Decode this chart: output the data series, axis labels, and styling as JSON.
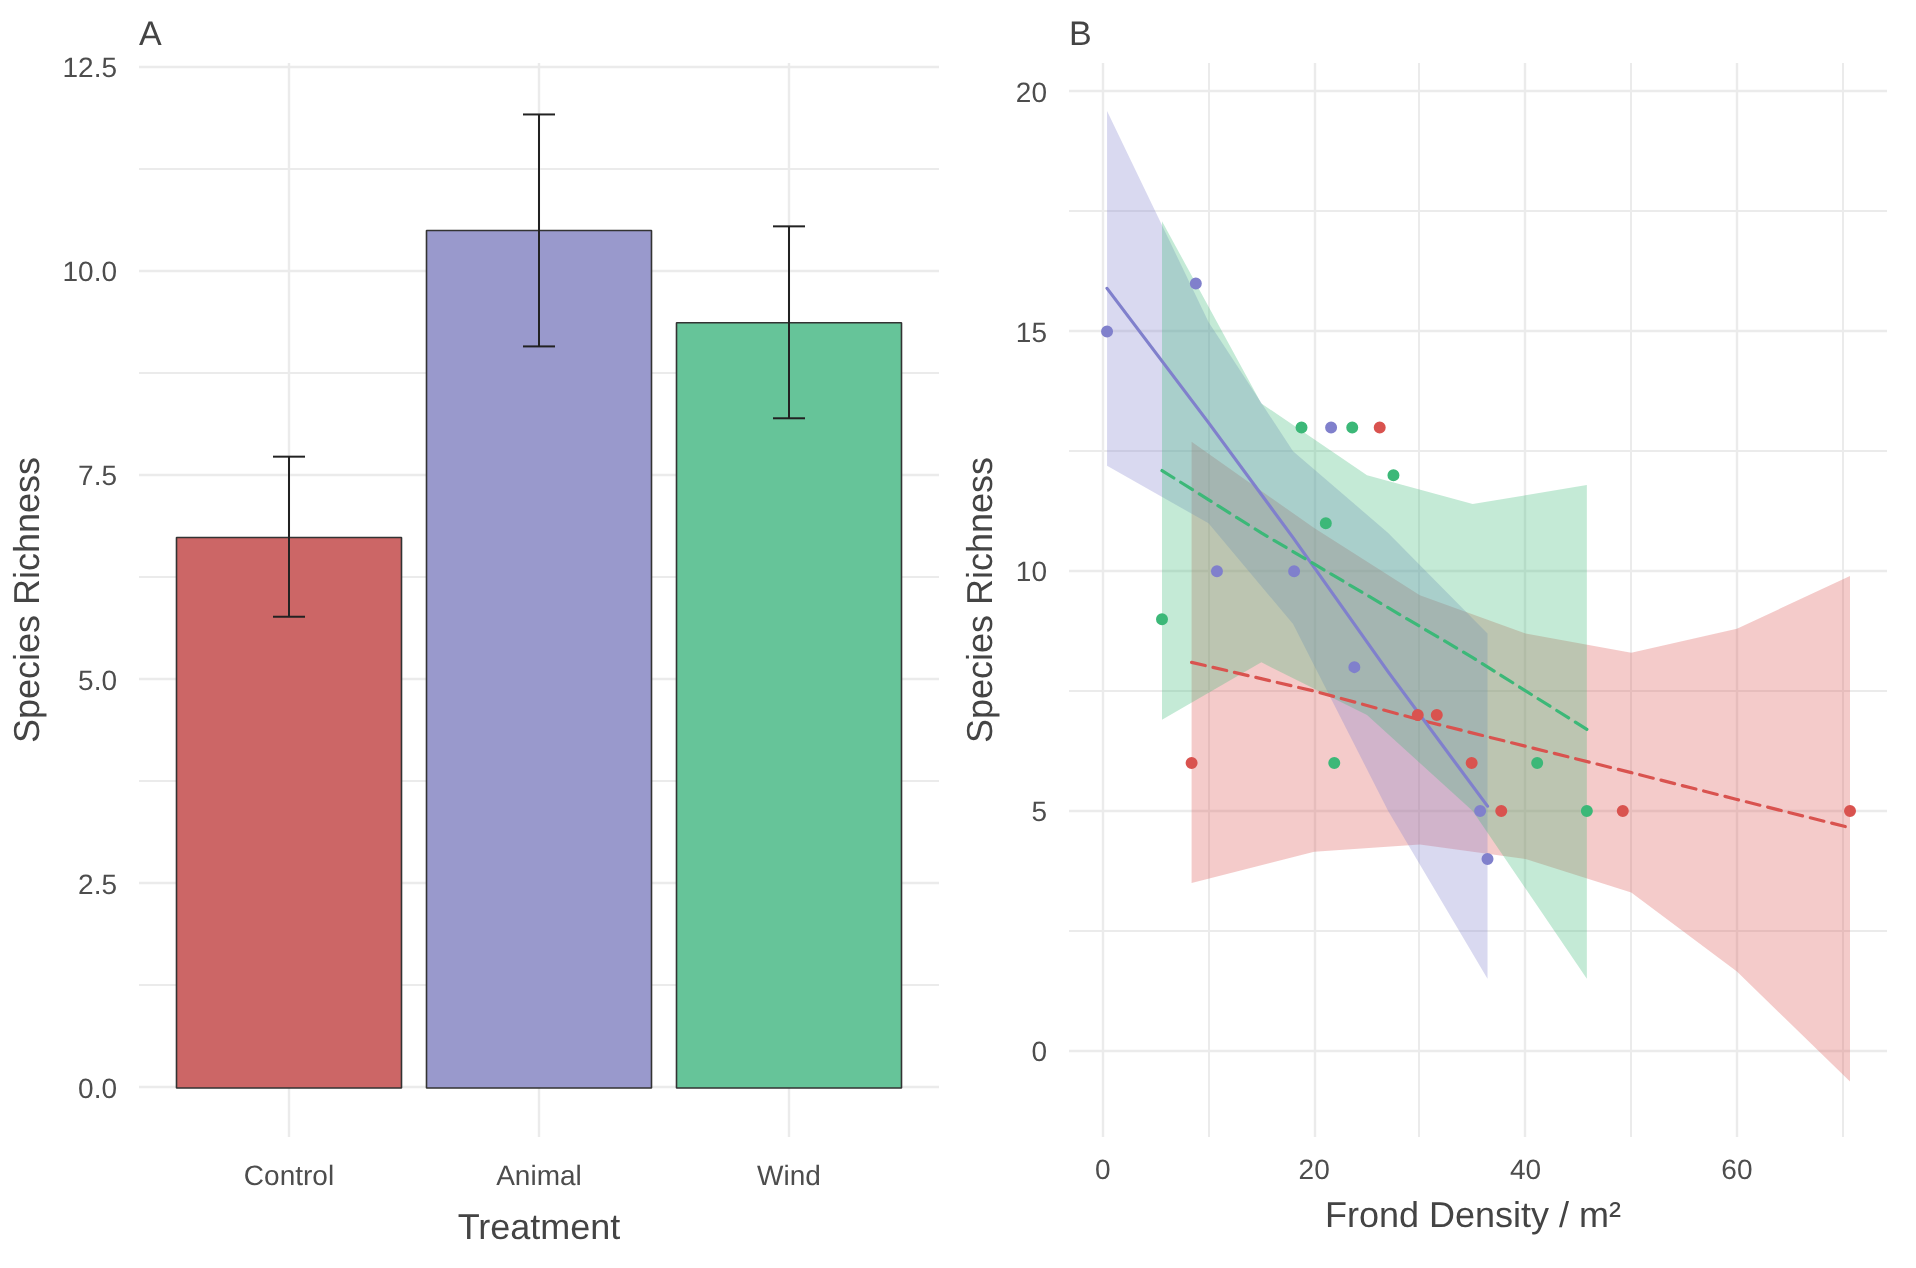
{
  "chart_data": [
    {
      "type": "bar",
      "title": "A",
      "categories": [
        "Control",
        "Animal",
        "Wind"
      ],
      "values": [
        6.74,
        10.5,
        9.37
      ],
      "colors": [
        "#cc6666",
        "#9999cc",
        "#66c499"
      ],
      "errors": [
        [
          5.77,
          7.73
        ],
        [
          9.08,
          11.92
        ],
        [
          8.2,
          10.55
        ]
      ],
      "xlabel": "Treatment",
      "ylabel": "Species Richness",
      "ylim": [
        -0.6,
        12.55
      ],
      "yticks": [
        {
          "value": 0,
          "label": "0.0"
        },
        {
          "value": 2.5,
          "label": "2.5"
        },
        {
          "value": 5,
          "label": "5.0"
        },
        {
          "value": 7.5,
          "label": "7.5"
        },
        {
          "value": 10,
          "label": "10.0"
        },
        {
          "value": 12.5,
          "label": "12.5"
        }
      ],
      "grid": true
    },
    {
      "type": "scatter",
      "title": "B",
      "xlabel": "Frond Density  / m²",
      "ylabel": "Species Richness",
      "xlim": [
        -3.2,
        74.2
      ],
      "ylim": [
        -1.8,
        20.6
      ],
      "xticks": [
        0,
        20,
        40,
        60
      ],
      "yticks": [
        0,
        5,
        10,
        15,
        20
      ],
      "grid": true,
      "series": [
        {
          "type": "scatter",
          "marker": "circle",
          "color": "#d9534f",
          "x": [
            8.4,
            26.2,
            29.8,
            31.6,
            34.9,
            37.7,
            49.2,
            70.7
          ],
          "values": [
            6,
            13,
            7,
            7,
            6,
            5,
            5,
            5
          ]
        },
        {
          "type": "scatter",
          "marker": "circle",
          "color": "#8080cc",
          "x": [
            0.4,
            8.8,
            10.8,
            18.1,
            21.6,
            23.8,
            35.7,
            36.4
          ],
          "values": [
            15,
            16,
            10,
            10,
            13,
            8,
            5,
            4
          ]
        },
        {
          "type": "scatter",
          "marker": "circle",
          "color": "#3cb878",
          "x": [
            5.6,
            18.8,
            21.1,
            21.9,
            23.6,
            27.5,
            41.1,
            45.8
          ],
          "values": [
            9,
            13,
            11,
            6,
            13,
            12,
            6,
            5
          ]
        },
        {
          "type": "line",
          "color": "#d9534f",
          "line_style": "dashed",
          "x": [
            8.4,
            20,
            30,
            40,
            50,
            60,
            70.7
          ],
          "values": [
            8.1,
            7.5,
            6.9,
            6.35,
            5.8,
            5.24,
            4.65
          ],
          "lower": [
            3.5,
            4.15,
            4.3,
            4.0,
            3.3,
            1.65,
            -0.64
          ],
          "upper": [
            12.7,
            10.9,
            9.5,
            8.7,
            8.3,
            8.8,
            9.9
          ]
        },
        {
          "type": "line",
          "color": "#8080cc",
          "line_style": "solid",
          "x": [
            0.4,
            10,
            18,
            27,
            36.4
          ],
          "values": [
            15.9,
            13.1,
            10.7,
            7.9,
            5.1
          ],
          "lower": [
            12.2,
            11.0,
            8.9,
            5.0,
            1.5
          ],
          "upper": [
            19.6,
            15.2,
            12.5,
            10.8,
            8.7
          ]
        },
        {
          "type": "line",
          "color": "#3cb878",
          "line_style": "dashed",
          "x": [
            5.6,
            15,
            25,
            35,
            45.8
          ],
          "values": [
            12.1,
            10.8,
            9.5,
            8.2,
            6.7
          ],
          "lower": [
            6.9,
            8.1,
            7.0,
            5.0,
            1.5
          ],
          "upper": [
            17.3,
            13.5,
            12.0,
            11.4,
            11.8
          ]
        }
      ]
    }
  ]
}
